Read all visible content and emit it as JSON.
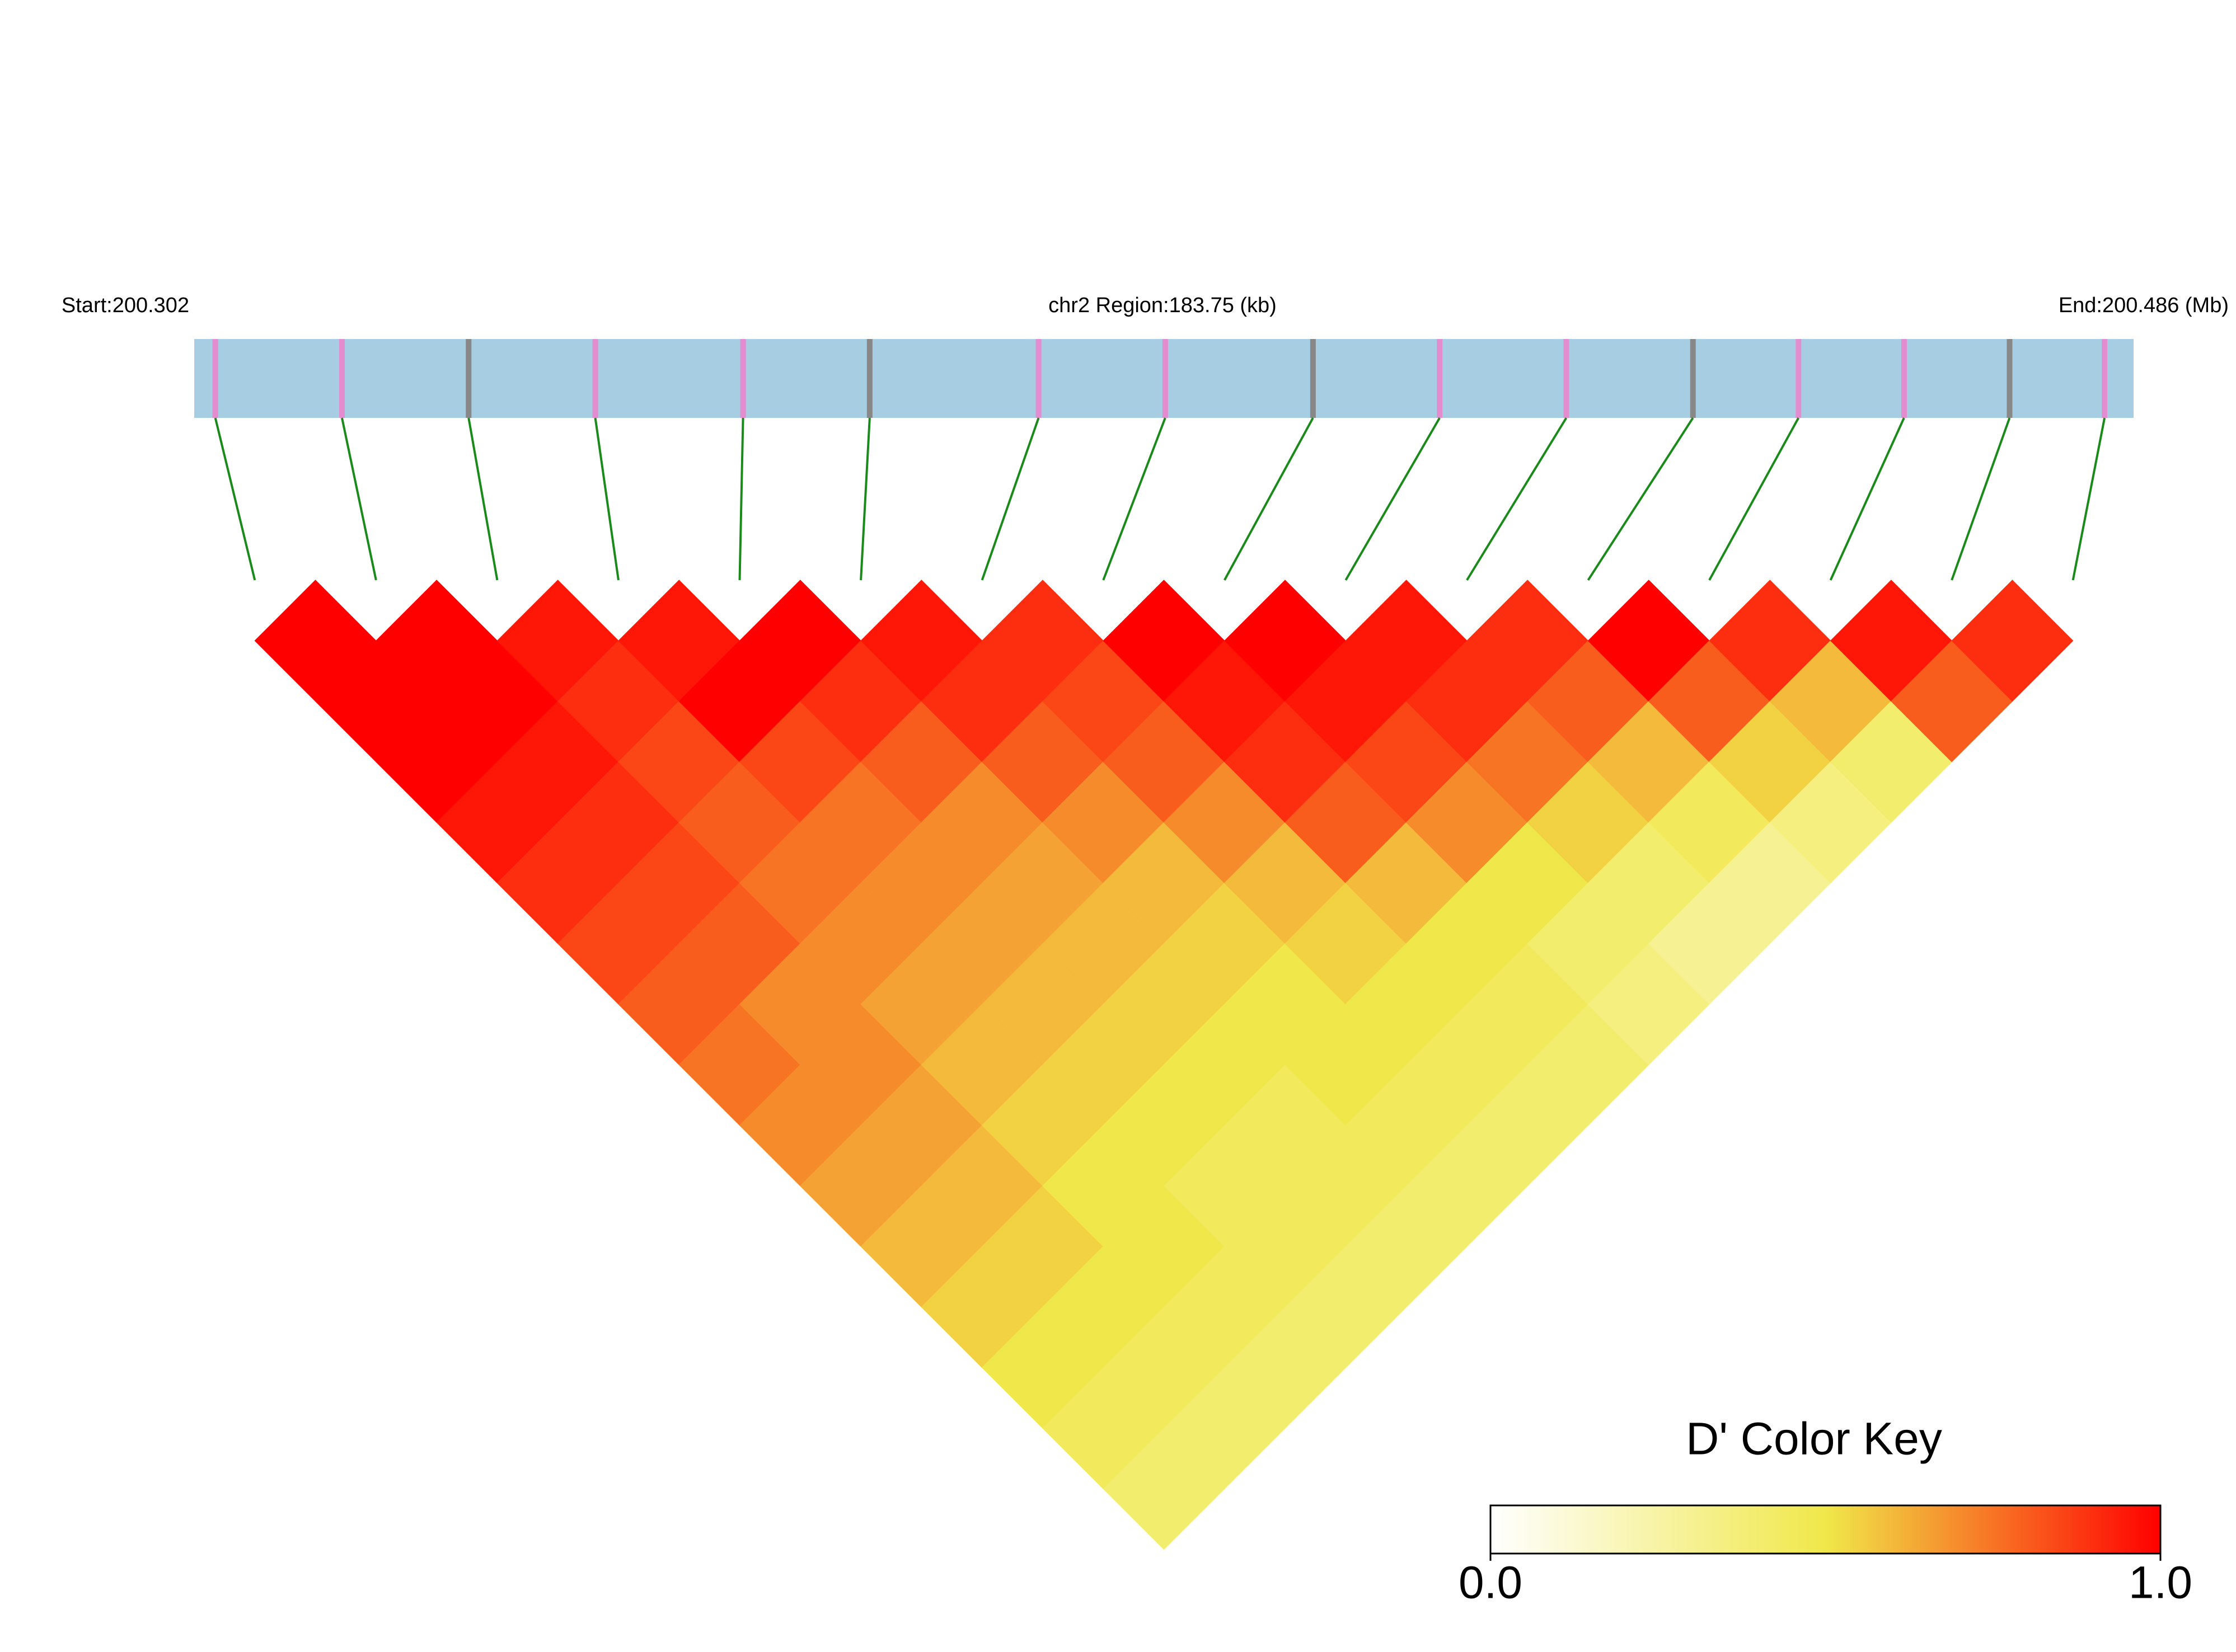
{
  "chart_data": {
    "type": "ld-heatmap",
    "start_label": "Start:200.302",
    "title": "chr2 Region:183.75 (kb)",
    "end_label": "End:200.486 (Mb)",
    "xlim": [
      0,
      183.75
    ],
    "marker_positions": [
      2,
      14,
      26,
      38,
      52,
      64,
      80,
      92,
      106,
      118,
      130,
      142,
      152,
      162,
      172,
      181
    ],
    "dprime": [
      [
        1,
        1,
        1,
        0.95,
        0.9,
        0.85,
        0.8,
        0.75,
        0.7,
        0.65,
        0.6,
        0.55,
        0.5,
        0.45,
        0.4
      ],
      [
        1,
        1,
        0.95,
        0.9,
        0.85,
        0.8,
        0.7,
        0.7,
        0.65,
        0.6,
        0.55,
        0.5,
        0.45,
        0.4
      ],
      [
        0.95,
        0.9,
        0.85,
        0.8,
        0.75,
        0.7,
        0.65,
        0.6,
        0.55,
        0.5,
        0.5,
        0.45,
        0.4
      ],
      [
        0.95,
        1,
        0.85,
        0.75,
        0.7,
        0.65,
        0.6,
        0.55,
        0.5,
        0.45,
        0.45,
        0.4
      ],
      [
        1,
        0.9,
        0.8,
        0.7,
        0.65,
        0.6,
        0.55,
        0.5,
        0.45,
        0.45,
        0.4
      ],
      [
        0.95,
        0.9,
        0.8,
        0.7,
        0.6,
        0.55,
        0.5,
        0.5,
        0.45,
        0.4
      ],
      [
        0.9,
        0.85,
        0.8,
        0.7,
        0.6,
        0.55,
        0.5,
        0.45,
        0.4
      ],
      [
        1,
        0.95,
        0.9,
        0.8,
        0.6,
        0.5,
        0.45,
        0.4
      ],
      [
        1,
        0.95,
        0.85,
        0.7,
        0.5,
        0.4,
        0.35
      ],
      [
        0.95,
        0.9,
        0.75,
        0.55,
        0.4,
        0.3
      ],
      [
        0.9,
        0.8,
        0.6,
        0.45,
        0.3
      ],
      [
        1,
        0.8,
        0.55,
        0.35
      ],
      [
        0.9,
        0.6,
        0.4
      ],
      [
        0.95,
        0.8
      ],
      [
        0.9
      ]
    ],
    "color_key": {
      "title": "D' Color Key",
      "lim": [
        0,
        1
      ],
      "ticks": [
        {
          "value": 0,
          "label": "0.0"
        },
        {
          "value": 1,
          "label": "1.0"
        }
      ]
    }
  }
}
